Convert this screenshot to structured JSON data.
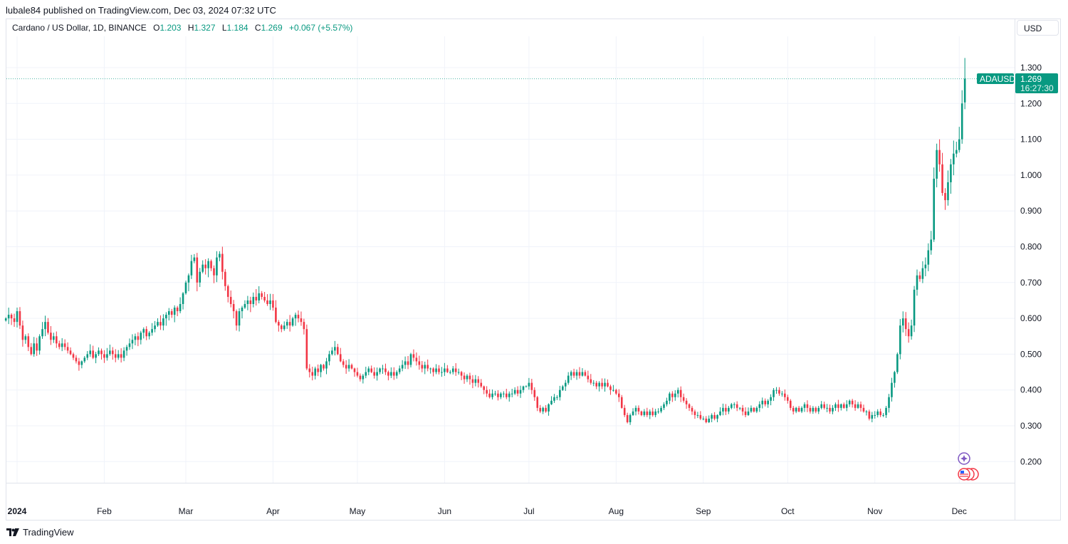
{
  "header": {
    "published": "lubale84 published on TradingView.com, Dec 03, 2024 07:32 UTC",
    "symbol": "Cardano / US Dollar, 1D, BINANCE",
    "open_label": "O",
    "open": "1.203",
    "high_label": "H",
    "high": "1.327",
    "low_label": "L",
    "low": "1.184",
    "close_label": "C",
    "close": "1.269",
    "change": "+0.067 (+5.57%)"
  },
  "currency_button": "USD",
  "last_price": {
    "ticker": "ADAUSD",
    "price": "1.269",
    "countdown": "16:27:30"
  },
  "footer": {
    "brand": "TradingView"
  },
  "colors": {
    "up": "#089981",
    "down": "#f23645",
    "grid": "#f0f3fa"
  },
  "chart_data": {
    "type": "candlestick",
    "title": "Cardano / US Dollar, 1D, BINANCE",
    "start_date": "2023-12-28",
    "interval": "1D",
    "ylim": [
      0.14,
      1.33
    ],
    "y_ticks": [
      "1.300",
      "1.200",
      "1.100",
      "1.000",
      "0.900",
      "0.800",
      "0.700",
      "0.600",
      "0.500",
      "0.400",
      "0.300",
      "0.200"
    ],
    "x_ticks": [
      {
        "label": "2024",
        "date": "2024-01-01",
        "bold": true
      },
      {
        "label": "Feb",
        "date": "2024-02-01"
      },
      {
        "label": "Mar",
        "date": "2024-03-01"
      },
      {
        "label": "Apr",
        "date": "2024-04-01"
      },
      {
        "label": "May",
        "date": "2024-05-01"
      },
      {
        "label": "Jun",
        "date": "2024-06-01"
      },
      {
        "label": "Jul",
        "date": "2024-07-01"
      },
      {
        "label": "Aug",
        "date": "2024-08-01"
      },
      {
        "label": "Sep",
        "date": "2024-09-01"
      },
      {
        "label": "Oct",
        "date": "2024-10-01"
      },
      {
        "label": "Nov",
        "date": "2024-11-01"
      },
      {
        "label": "Dec",
        "date": "2024-12-01"
      }
    ],
    "last_candle": {
      "open": 1.203,
      "high": 1.327,
      "low": 1.184,
      "close": 1.269
    },
    "closes": [
      0.6,
      0.61,
      0.6,
      0.59,
      0.62,
      0.58,
      0.54,
      0.55,
      0.52,
      0.5,
      0.53,
      0.51,
      0.55,
      0.57,
      0.59,
      0.56,
      0.54,
      0.55,
      0.53,
      0.52,
      0.53,
      0.52,
      0.51,
      0.5,
      0.49,
      0.48,
      0.47,
      0.48,
      0.49,
      0.5,
      0.51,
      0.49,
      0.5,
      0.51,
      0.5,
      0.49,
      0.5,
      0.51,
      0.5,
      0.49,
      0.5,
      0.49,
      0.51,
      0.52,
      0.53,
      0.54,
      0.55,
      0.54,
      0.56,
      0.57,
      0.55,
      0.56,
      0.57,
      0.58,
      0.59,
      0.58,
      0.6,
      0.61,
      0.62,
      0.61,
      0.63,
      0.62,
      0.64,
      0.67,
      0.7,
      0.72,
      0.76,
      0.77,
      0.7,
      0.73,
      0.75,
      0.74,
      0.76,
      0.74,
      0.72,
      0.77,
      0.78,
      0.73,
      0.69,
      0.66,
      0.64,
      0.62,
      0.58,
      0.62,
      0.63,
      0.64,
      0.65,
      0.64,
      0.66,
      0.65,
      0.67,
      0.66,
      0.65,
      0.64,
      0.65,
      0.63,
      0.59,
      0.58,
      0.57,
      0.58,
      0.59,
      0.58,
      0.6,
      0.61,
      0.6,
      0.59,
      0.57,
      0.46,
      0.45,
      0.44,
      0.46,
      0.45,
      0.47,
      0.46,
      0.48,
      0.5,
      0.51,
      0.52,
      0.5,
      0.48,
      0.47,
      0.46,
      0.47,
      0.46,
      0.45,
      0.44,
      0.43,
      0.44,
      0.45,
      0.46,
      0.45,
      0.44,
      0.45,
      0.46,
      0.46,
      0.45,
      0.44,
      0.45,
      0.44,
      0.45,
      0.46,
      0.47,
      0.48,
      0.47,
      0.5,
      0.49,
      0.48,
      0.47,
      0.46,
      0.47,
      0.46,
      0.46,
      0.45,
      0.46,
      0.45,
      0.45,
      0.46,
      0.45,
      0.45,
      0.46,
      0.45,
      0.45,
      0.44,
      0.43,
      0.44,
      0.43,
      0.42,
      0.43,
      0.42,
      0.41,
      0.4,
      0.39,
      0.38,
      0.39,
      0.39,
      0.38,
      0.39,
      0.39,
      0.38,
      0.39,
      0.39,
      0.4,
      0.39,
      0.4,
      0.41,
      0.41,
      0.42,
      0.4,
      0.38,
      0.35,
      0.34,
      0.35,
      0.34,
      0.36,
      0.37,
      0.38,
      0.38,
      0.4,
      0.41,
      0.42,
      0.44,
      0.45,
      0.44,
      0.45,
      0.44,
      0.45,
      0.44,
      0.43,
      0.42,
      0.42,
      0.41,
      0.42,
      0.41,
      0.42,
      0.41,
      0.4,
      0.4,
      0.39,
      0.38,
      0.35,
      0.33,
      0.31,
      0.33,
      0.34,
      0.35,
      0.34,
      0.33,
      0.34,
      0.33,
      0.34,
      0.33,
      0.34,
      0.34,
      0.35,
      0.36,
      0.37,
      0.39,
      0.38,
      0.39,
      0.4,
      0.38,
      0.37,
      0.36,
      0.35,
      0.34,
      0.33,
      0.33,
      0.32,
      0.32,
      0.31,
      0.32,
      0.33,
      0.32,
      0.33,
      0.34,
      0.35,
      0.34,
      0.35,
      0.36,
      0.36,
      0.35,
      0.35,
      0.34,
      0.33,
      0.34,
      0.35,
      0.34,
      0.35,
      0.36,
      0.37,
      0.36,
      0.37,
      0.38,
      0.4,
      0.4,
      0.39,
      0.39,
      0.38,
      0.37,
      0.35,
      0.34,
      0.35,
      0.34,
      0.35,
      0.36,
      0.35,
      0.34,
      0.35,
      0.34,
      0.35,
      0.36,
      0.35,
      0.35,
      0.34,
      0.35,
      0.36,
      0.35,
      0.36,
      0.35,
      0.36,
      0.37,
      0.36,
      0.35,
      0.36,
      0.35,
      0.34,
      0.34,
      0.32,
      0.33,
      0.33,
      0.34,
      0.33,
      0.33,
      0.35,
      0.38,
      0.42,
      0.45,
      0.5,
      0.58,
      0.6,
      0.57,
      0.55,
      0.58,
      0.68,
      0.72,
      0.71,
      0.74,
      0.75,
      0.79,
      0.82,
      0.99,
      1.07,
      1.03,
      0.95,
      0.93,
      0.98,
      1.03,
      1.06,
      1.07,
      1.1,
      1.2,
      1.269
    ]
  }
}
